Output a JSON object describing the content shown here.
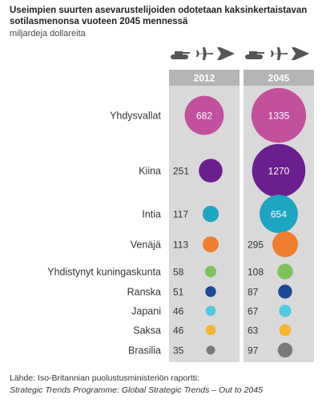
{
  "title": "Useimpien suurten asevarustelijoiden odotetaan kaksinkertaistavan sotilasmenonsa vuoteen 2045 mennessä",
  "subtitle": "miljardeja dollareita",
  "source_line1": "Lähde: Iso-Britannian puolustusministeriön raportti:",
  "source_line2": "Strategic Trends Programme: Global Strategic Trends – Out to 2045",
  "icons": [
    "tank-icon",
    "fighter-jet-icon",
    "drone-icon"
  ],
  "chart_data": {
    "type": "bubble",
    "title": "Useimpien suurten asevarustelijoiden odotetaan kaksinkertaistavan sotilasmenonsa vuoteen 2045 mennessä",
    "subtitle": "miljardeja dollareita",
    "columns": [
      "2012",
      "2045"
    ],
    "categories": [
      "Yhdysvallat",
      "Kiina",
      "Intia",
      "Venäjä",
      "Yhdistynyt kuningaskunta",
      "Ranska",
      "Japani",
      "Saksa",
      "Brasilia"
    ],
    "series": [
      {
        "name": "2012",
        "values": [
          682,
          251,
          117,
          113,
          58,
          51,
          46,
          46,
          35
        ]
      },
      {
        "name": "2045",
        "values": [
          1335,
          1270,
          654,
          295,
          108,
          87,
          67,
          63,
          97
        ]
      }
    ],
    "colors": [
      "#c2509d",
      "#6a1f8f",
      "#1ea5c1",
      "#ef7d2d",
      "#7cc35b",
      "#1c4a97",
      "#4fc8e3",
      "#f6b52d",
      "#7a7a7a"
    ],
    "column_background": "#d9d9d9",
    "column_header_background": "#b5b5b5"
  }
}
